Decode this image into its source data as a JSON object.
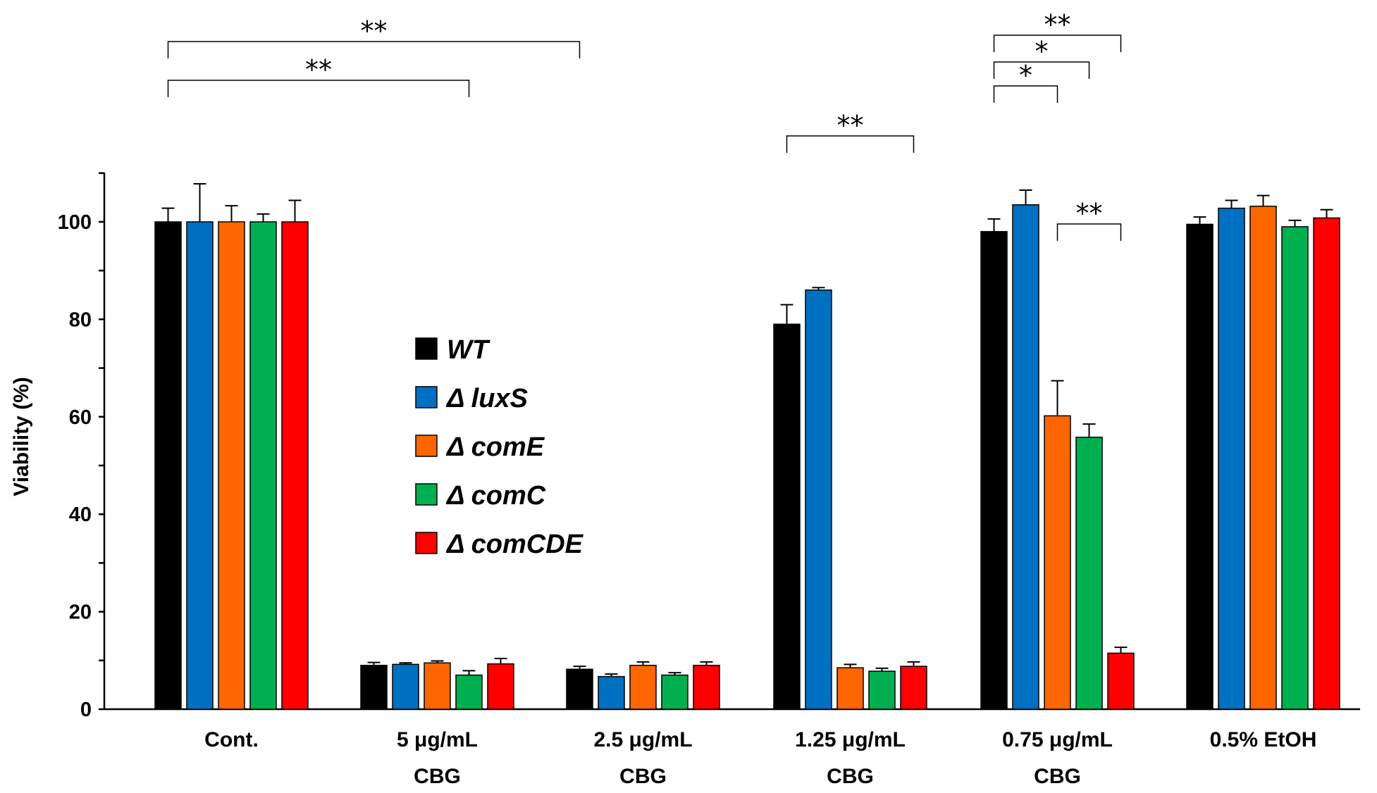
{
  "chart_data": {
    "type": "bar",
    "title": "",
    "xlabel": "",
    "ylabel": "Viability (%)",
    "ylim": [
      0,
      110
    ],
    "yticks": [
      0,
      20,
      40,
      60,
      80,
      100
    ],
    "grid": false,
    "legend_position": "center-left",
    "categories": [
      [
        "Cont."
      ],
      [
        "5 μg/mL",
        "CBG"
      ],
      [
        "2.5 μg/mL",
        "CBG"
      ],
      [
        "1.25 μg/mL",
        "CBG"
      ],
      [
        "0.75 μg/mL",
        "CBG"
      ],
      [
        "0.5% EtOH"
      ]
    ],
    "series": [
      {
        "name": "WT",
        "color": "#000000",
        "values": [
          100,
          9,
          8.2,
          79,
          98,
          99.5
        ],
        "errors": [
          2.8,
          0.6,
          0.6,
          4,
          2.6,
          1.5
        ]
      },
      {
        "name": "Δ luxS",
        "color": "#0070C0",
        "values": [
          100,
          9.2,
          6.7,
          86,
          103.5,
          102.8
        ],
        "errors": [
          7.8,
          0.3,
          0.5,
          0.5,
          3,
          1.6
        ]
      },
      {
        "name": "Δ comE",
        "color": "#FF6600",
        "values": [
          100,
          9.5,
          9,
          8.5,
          60.2,
          103.2
        ],
        "errors": [
          3.3,
          0.4,
          0.7,
          0.7,
          7.2,
          2.2
        ]
      },
      {
        "name": "Δ comC",
        "color": "#00B050",
        "values": [
          100,
          7,
          7,
          7.8,
          55.8,
          99
        ],
        "errors": [
          1.6,
          0.9,
          0.5,
          0.6,
          2.7,
          1.3
        ]
      },
      {
        "name": "Δ comCDE",
        "color": "#FF0000",
        "values": [
          100,
          9.3,
          9,
          8.8,
          11.5,
          100.8
        ],
        "errors": [
          4.4,
          1.1,
          0.7,
          0.9,
          1.2,
          1.7
        ]
      }
    ],
    "annotations": [
      {
        "text": "**",
        "from": [
          0,
          0
        ],
        "to": [
          2,
          0
        ],
        "level": 5
      },
      {
        "text": "**",
        "from": [
          0,
          0
        ],
        "to": [
          1,
          3
        ],
        "level": 4
      },
      {
        "text": "**",
        "from": [
          3,
          0
        ],
        "to": [
          3,
          4
        ],
        "level": 2
      },
      {
        "text": "**",
        "from": [
          4,
          0
        ],
        "to": [
          4,
          4
        ],
        "level": 6
      },
      {
        "text": "*",
        "from": [
          4,
          0
        ],
        "to": [
          4,
          3
        ],
        "level": 5
      },
      {
        "text": "*",
        "from": [
          4,
          0
        ],
        "to": [
          4,
          2
        ],
        "level": 4
      },
      {
        "text": "**",
        "from": [
          4,
          2
        ],
        "to": [
          4,
          4
        ],
        "level": 1
      }
    ]
  }
}
